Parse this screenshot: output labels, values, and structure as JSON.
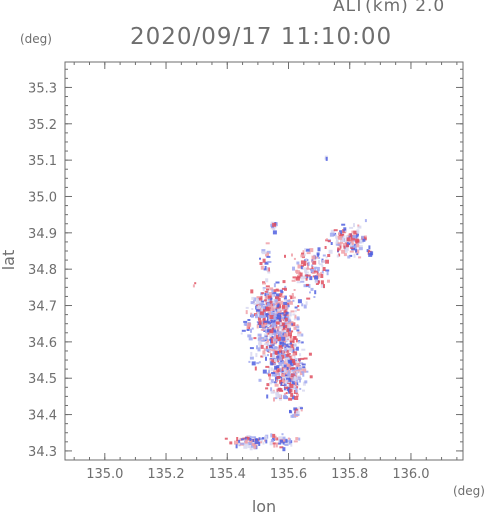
{
  "header": {
    "altitude_label": "ALT(km) 2.0",
    "timestamp": "2020/09/17 11:10:00",
    "y_unit": "(deg)",
    "x_unit": "(deg)"
  },
  "chart_data": {
    "type": "scatter",
    "title": "2020/09/17 11:10:00",
    "subtitle": "ALT(km) 2.0",
    "xlabel": "lon",
    "ylabel": "lat",
    "xunit": "(deg)",
    "yunit": "(deg)",
    "xlim": [
      134.87,
      136.17
    ],
    "ylim": [
      34.275,
      35.37
    ],
    "xticks": [
      "135.0",
      "135.2",
      "135.4",
      "135.6",
      "135.8",
      "136.0"
    ],
    "yticks": [
      "34.3",
      "34.4",
      "34.5",
      "34.6",
      "34.7",
      "34.8",
      "34.9",
      "35.0",
      "35.1",
      "35.2",
      "35.3"
    ],
    "grid": false,
    "colors": {
      "frame": "#6e6e6e",
      "positive": "#e05060",
      "negative": "#5060e0",
      "neutral": "#d8d8f0"
    },
    "clusters": [
      {
        "lon": 135.56,
        "lat": 34.64,
        "sx": 0.045,
        "sy": 0.07,
        "n": 520
      },
      {
        "lon": 135.59,
        "lat": 34.52,
        "sx": 0.035,
        "sy": 0.045,
        "n": 300
      },
      {
        "lon": 135.53,
        "lat": 34.7,
        "sx": 0.03,
        "sy": 0.03,
        "n": 160
      },
      {
        "lon": 135.67,
        "lat": 34.8,
        "sx": 0.035,
        "sy": 0.035,
        "n": 120
      },
      {
        "lon": 135.79,
        "lat": 34.88,
        "sx": 0.04,
        "sy": 0.025,
        "n": 130
      },
      {
        "lon": 135.55,
        "lat": 34.92,
        "sx": 0.008,
        "sy": 0.008,
        "n": 12
      },
      {
        "lon": 135.48,
        "lat": 34.33,
        "sx": 0.04,
        "sy": 0.01,
        "n": 70
      },
      {
        "lon": 135.58,
        "lat": 34.33,
        "sx": 0.03,
        "sy": 0.01,
        "n": 40
      },
      {
        "lon": 135.52,
        "lat": 34.83,
        "sx": 0.012,
        "sy": 0.03,
        "n": 20
      },
      {
        "lon": 135.62,
        "lat": 34.41,
        "sx": 0.012,
        "sy": 0.01,
        "n": 15
      },
      {
        "lon": 135.72,
        "lat": 35.11,
        "sx": 0.004,
        "sy": 0.003,
        "n": 3
      },
      {
        "lon": 135.29,
        "lat": 34.76,
        "sx": 0.003,
        "sy": 0.003,
        "n": 2
      },
      {
        "lon": 135.46,
        "lat": 34.66,
        "sx": 0.012,
        "sy": 0.02,
        "n": 15
      },
      {
        "lon": 135.86,
        "lat": 34.85,
        "sx": 0.006,
        "sy": 0.005,
        "n": 6
      }
    ]
  }
}
